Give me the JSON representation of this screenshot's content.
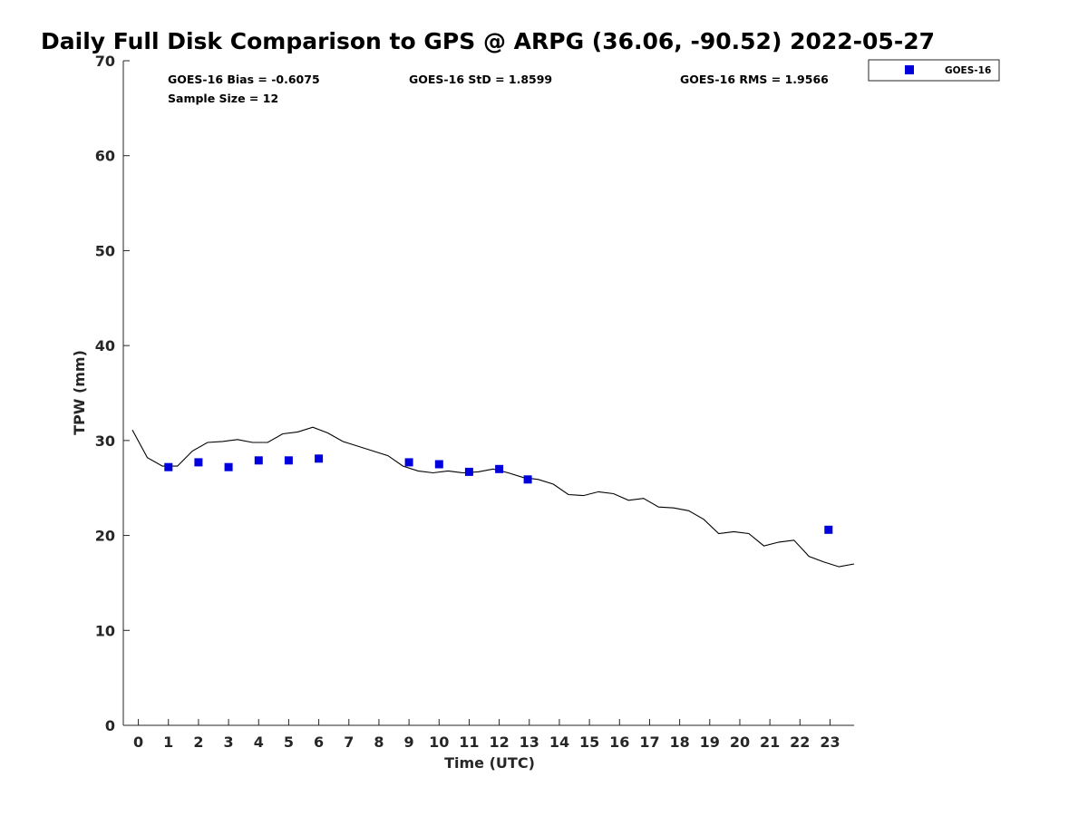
{
  "chart_data": {
    "type": "scatter",
    "title": "Daily Full Disk Comparison to GPS @ ARPG (36.06, -90.52) 2022-05-27",
    "xlabel": "Time (UTC)",
    "ylabel": "TPW (mm)",
    "xlim": [
      -0.5,
      23.8
    ],
    "ylim": [
      0,
      70
    ],
    "xticks": [
      "0",
      "1",
      "2",
      "3",
      "4",
      "5",
      "6",
      "7",
      "8",
      "9",
      "10",
      "11",
      "12",
      "13",
      "14",
      "15",
      "16",
      "17",
      "18",
      "19",
      "20",
      "21",
      "22",
      "23"
    ],
    "yticks": [
      "0",
      "10",
      "20",
      "30",
      "40",
      "50",
      "60",
      "70"
    ],
    "grid": false,
    "legend_position": "top-right, outside plot",
    "stats": {
      "bias": "GOES-16 Bias = -0.6075",
      "std": "GOES-16 StD = 1.8599",
      "rms": "GOES-16 RMS = 1.9566",
      "sample": "Sample Size = 12"
    },
    "series": [
      {
        "name": "GOES-16",
        "kind": "marker",
        "color": "#0000dd",
        "x": [
          1.0,
          2.0,
          3.0,
          4.0,
          5.0,
          6.0,
          9.0,
          10.0,
          11.0,
          12.0,
          12.95,
          22.95
        ],
        "y": [
          27.2,
          27.7,
          27.2,
          27.9,
          27.9,
          28.1,
          27.7,
          27.5,
          26.7,
          27.0,
          25.9,
          20.6
        ]
      },
      {
        "kind": "line",
        "color": "#000000",
        "x": [
          -0.2,
          0.3,
          0.8,
          1.3,
          1.8,
          2.3,
          2.8,
          3.3,
          3.8,
          4.3,
          4.8,
          5.3,
          5.8,
          6.3,
          6.8,
          7.3,
          7.8,
          8.3,
          8.8,
          9.3,
          9.8,
          10.3,
          10.8,
          11.3,
          11.8,
          12.3,
          12.8,
          13.3,
          13.8,
          14.3,
          14.8,
          15.3,
          15.8,
          16.3,
          16.8,
          17.3,
          17.8,
          18.3,
          18.8,
          19.3,
          19.8,
          20.3,
          20.8,
          21.3,
          21.8,
          22.3,
          22.8,
          23.3,
          23.8
        ],
        "y": [
          31.1,
          28.2,
          27.3,
          27.3,
          28.9,
          29.8,
          29.9,
          30.1,
          29.8,
          29.8,
          30.7,
          30.9,
          31.4,
          30.8,
          29.9,
          29.4,
          28.9,
          28.4,
          27.3,
          26.8,
          26.6,
          26.8,
          26.6,
          26.7,
          27.0,
          26.6,
          26.1,
          25.9,
          25.4,
          24.3,
          24.2,
          24.6,
          24.4,
          23.7,
          23.9,
          23.0,
          22.9,
          22.6,
          21.7,
          20.2,
          20.4,
          20.2,
          18.9,
          19.3,
          19.5,
          17.8,
          17.2,
          16.7,
          17.0
        ]
      }
    ]
  }
}
